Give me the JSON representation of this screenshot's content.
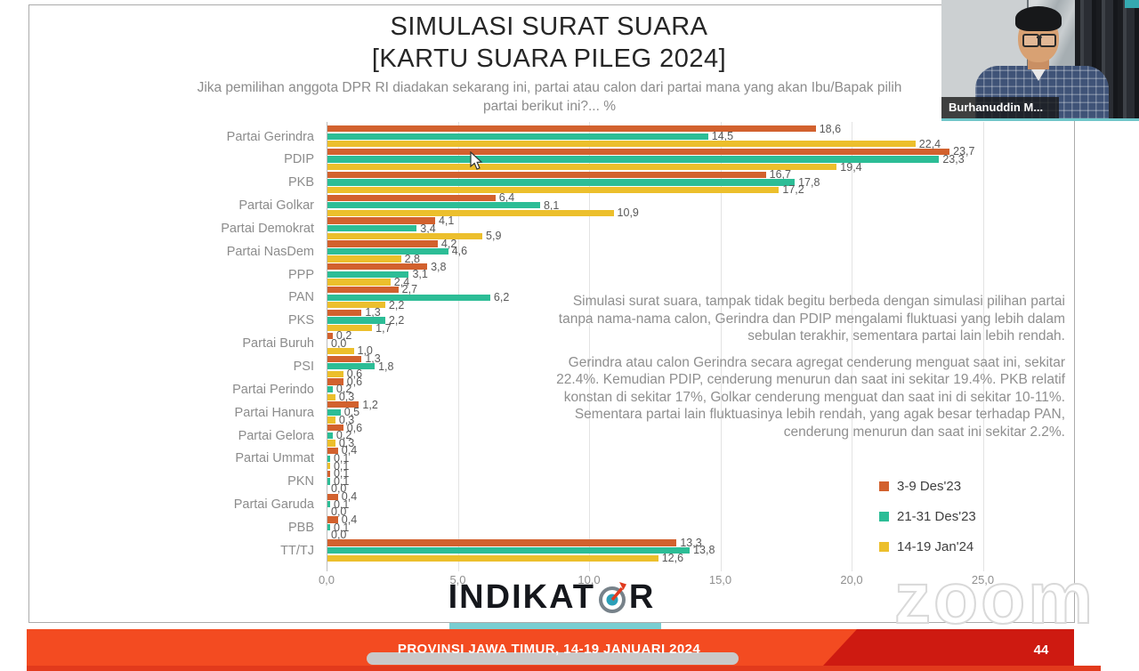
{
  "header": {
    "title_line1": "SIMULASI SURAT SUARA",
    "title_line2": "[KARTU SUARA PILEG 2024]",
    "subtitle_line1": "Jika pemilihan anggota DPR RI diadakan sekarang ini, partai atau calon dari partai mana yang akan Ibu/Bapak pilih",
    "subtitle_line2": "partai berikut ini?... %"
  },
  "chart_data": {
    "type": "bar",
    "orientation": "horizontal",
    "title": "SIMULASI SURAT SUARA [KARTU SUARA PILEG 2024]",
    "categories": [
      "Partai Gerindra",
      "PDIP",
      "PKB",
      "Partai Golkar",
      "Partai Demokrat",
      "Partai NasDem",
      "PPP",
      "PAN",
      "PKS",
      "Partai Buruh",
      "PSI",
      "Partai Perindo",
      "Partai Hanura",
      "Partai Gelora",
      "Partai Ummat",
      "PKN",
      "Partai Garuda",
      "PBB",
      "TT/TJ"
    ],
    "series": [
      {
        "name": "3-9 Des'23",
        "color": "#d2612e",
        "values": [
          18.6,
          23.7,
          16.7,
          6.4,
          4.1,
          4.2,
          3.8,
          2.7,
          1.3,
          0.2,
          1.3,
          0.6,
          1.2,
          0.6,
          0.4,
          0.1,
          0.4,
          0.4,
          13.3
        ]
      },
      {
        "name": "21-31 Des'23",
        "color": "#2cbd96",
        "values": [
          14.5,
          23.3,
          17.8,
          8.1,
          3.4,
          4.6,
          3.1,
          6.2,
          2.2,
          0.0,
          1.8,
          0.2,
          0.5,
          0.2,
          0.1,
          0.1,
          0.1,
          0.1,
          13.8
        ]
      },
      {
        "name": "14-19 Jan'24",
        "color": "#ecbf2c",
        "values": [
          22.4,
          19.4,
          17.2,
          10.9,
          5.9,
          2.8,
          2.4,
          2.2,
          1.7,
          1.0,
          0.6,
          0.3,
          0.3,
          0.3,
          0.1,
          0.0,
          0.0,
          0.0,
          12.6
        ]
      }
    ],
    "xlim": [
      0,
      25
    ],
    "x_tick_labels": [
      "0,0",
      "5,0",
      "10,0",
      "15,0",
      "20,0",
      "25,0"
    ],
    "value_label_decimal_separator": ",",
    "grid": true,
    "legend_position": "right-bottom"
  },
  "legend": {
    "items": [
      {
        "label": "3-9 Des'23",
        "color": "#d2612e"
      },
      {
        "label": "21-31 Des'23",
        "color": "#2cbd96"
      },
      {
        "label": "14-19 Jan'24",
        "color": "#ecbf2c"
      }
    ]
  },
  "commentary": {
    "para1": "Simulasi surat suara, tampak tidak begitu berbeda dengan simulasi pilihan partai tanpa nama-nama calon, Gerindra dan PDIP mengalami fluktuasi yang lebih dalam sebulan terakhir, sementara partai lain lebih rendah.",
    "para2": "Gerindra atau calon Gerindra secara agregat cenderung menguat saat ini, sekitar 22.4%. Kemudian PDIP, cenderung menurun dan saat ini sekitar 19.4%. PKB relatif konstan di sekitar 17%, Golkar cenderung menguat dan saat ini di sekitar 10-11%. Sementara partai lain fluktuasinya lebih rendah, yang agak besar terhadap PAN, cenderung menurun dan saat ini sekitar 2.2%."
  },
  "logo": {
    "text_left": "INDIKAT",
    "text_right": "R"
  },
  "footer": {
    "banner_text": "PROVINSI JAWA TIMUR, 14-19 JANUARI 2024",
    "page_number": "44"
  },
  "webcam": {
    "name_label": "Burhanuddin M..."
  },
  "watermark_text": "zoom",
  "colors": {
    "series_dec_early": "#d2612e",
    "series_dec_late": "#2cbd96",
    "series_jan": "#ecbf2c",
    "footer_orange": "#f34b21",
    "footer_dark_red": "#ce1a11",
    "teal_underline": "#79ced2",
    "logo_compass_teal": "#2b9fb8",
    "logo_compass_needle": "#e03a1e"
  }
}
